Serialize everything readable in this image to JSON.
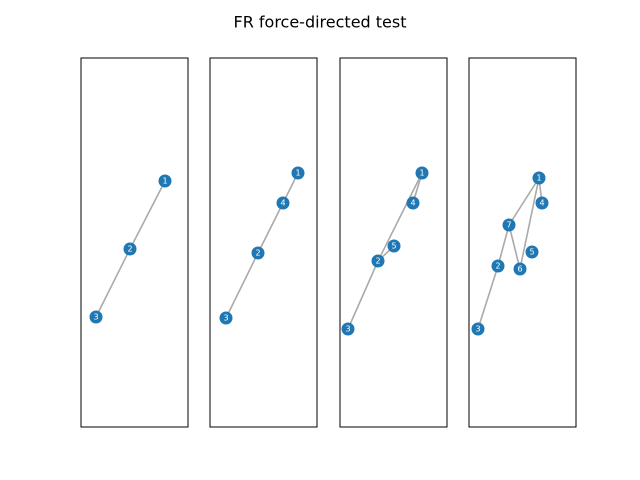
{
  "title": "FR force-directed test",
  "panels": [
    {
      "nodes": [
        "1",
        "2",
        "3"
      ]
    },
    {
      "nodes": [
        "1",
        "4",
        "2",
        "3"
      ]
    },
    {
      "nodes": [
        "1",
        "4",
        "5",
        "2",
        "3"
      ]
    },
    {
      "nodes": [
        "1",
        "4",
        "7",
        "5",
        "6",
        "2",
        "3"
      ]
    }
  ]
}
